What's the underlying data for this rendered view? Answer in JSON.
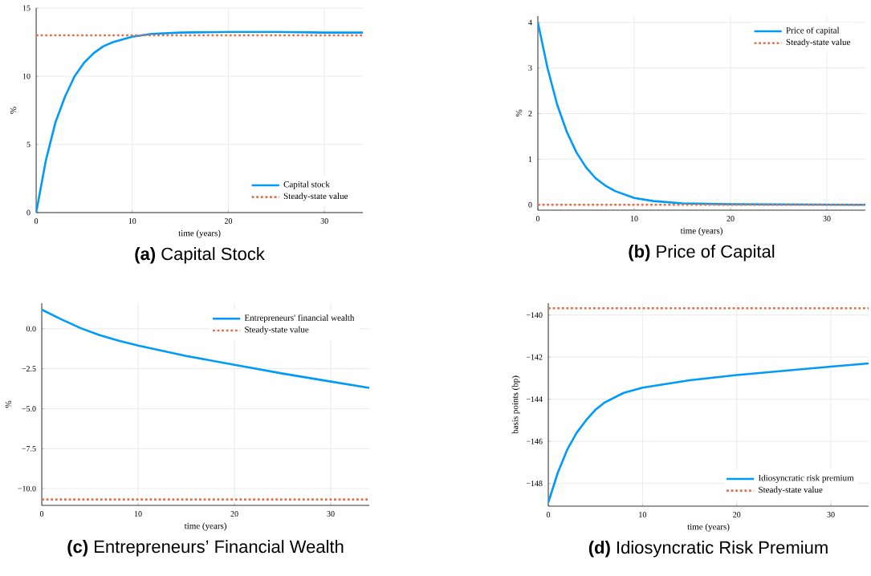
{
  "chart_data": [
    {
      "type": "line",
      "title": "**(a)** Capital Stock",
      "xlabel": "time (years)",
      "ylabel": "%",
      "xlim": [
        0,
        34
      ],
      "ylim": [
        0,
        15
      ],
      "xticks": [
        0,
        10,
        20,
        30
      ],
      "yticks": [
        0,
        5,
        10,
        15
      ],
      "grid": true,
      "legend": "bottom right",
      "series": [
        {
          "name": "Capital stock",
          "color": "#009afa",
          "x": [
            0,
            1,
            2,
            3,
            4,
            5,
            6,
            7,
            8,
            10,
            12,
            15,
            20,
            25,
            30,
            34
          ],
          "values": [
            0,
            3.8,
            6.6,
            8.5,
            10.0,
            11.0,
            11.7,
            12.2,
            12.5,
            12.9,
            13.1,
            13.2,
            13.25,
            13.25,
            13.2,
            13.2
          ]
        },
        {
          "name": "Steady-state value",
          "color": "#e26f46",
          "line_style": "dotted",
          "x": [
            0,
            34
          ],
          "values": [
            13.0,
            13.0
          ]
        }
      ]
    },
    {
      "type": "line",
      "title": "**(b)** Price of Capital",
      "xlabel": "time (years)",
      "ylabel": "%",
      "xlim": [
        0,
        34
      ],
      "ylim": [
        -0.12,
        4.14
      ],
      "xticks": [
        0,
        10,
        20,
        30
      ],
      "yticks": [
        0,
        1,
        2,
        3,
        4
      ],
      "grid": true,
      "legend": "top right",
      "series": [
        {
          "name": "Price of capital",
          "color": "#009afa",
          "x": [
            0,
            1,
            2,
            3,
            4,
            5,
            6,
            7,
            8,
            10,
            12,
            15,
            20,
            34
          ],
          "values": [
            4.0,
            3.0,
            2.2,
            1.6,
            1.15,
            0.82,
            0.58,
            0.42,
            0.3,
            0.15,
            0.08,
            0.03,
            0.01,
            0.0
          ]
        },
        {
          "name": "Steady-state value",
          "color": "#e26f46",
          "line_style": "dotted",
          "x": [
            0,
            34
          ],
          "values": [
            0,
            0
          ]
        }
      ]
    },
    {
      "type": "line",
      "title": "**(c)** Entrepreneurs’ Financial Wealth",
      "xlabel": "time (years)",
      "ylabel": "%",
      "xlim": [
        0,
        34
      ],
      "ylim": [
        -11.05,
        1.6
      ],
      "xticks": [
        0,
        10,
        20,
        30
      ],
      "yticks": [
        {
          "value": -10,
          "label": "−10.0"
        },
        {
          "value": -7.5,
          "label": "−7.5"
        },
        {
          "value": -5,
          "label": "−5.0"
        },
        {
          "value": -2.5,
          "label": "−2.5"
        },
        {
          "value": 0,
          "label": "0.0"
        }
      ],
      "grid": true,
      "legend": "top right",
      "series": [
        {
          "name": "Entrepreneurs' financial wealth",
          "color": "#009afa",
          "x": [
            0,
            2,
            4,
            6,
            8,
            10,
            15,
            20,
            25,
            30,
            34
          ],
          "values": [
            1.2,
            0.6,
            0.05,
            -0.4,
            -0.75,
            -1.05,
            -1.7,
            -2.25,
            -2.8,
            -3.3,
            -3.7
          ]
        },
        {
          "name": "Steady-state value",
          "color": "#e26f46",
          "line_style": "dotted",
          "x": [
            0,
            34
          ],
          "values": [
            -10.68,
            -10.68
          ]
        }
      ]
    },
    {
      "type": "line",
      "title": "**(d)** Idiosyncratic Risk Premium",
      "xlabel": "time (years)",
      "ylabel": "basis points (bp)",
      "xlim": [
        0,
        34
      ],
      "ylim": [
        -149.08,
        -139.44
      ],
      "xticks": [
        0,
        10,
        20,
        30
      ],
      "yticks": [
        {
          "value": -148,
          "label": "−148"
        },
        {
          "value": -146,
          "label": "−146"
        },
        {
          "value": -144,
          "label": "−144"
        },
        {
          "value": -142,
          "label": "−142"
        },
        {
          "value": -140,
          "label": "−140"
        }
      ],
      "grid": true,
      "legend": "bottom right",
      "series": [
        {
          "name": "Idiosyncratic risk premium",
          "color": "#009afa",
          "x": [
            0,
            1,
            2,
            3,
            4,
            5,
            6,
            8,
            10,
            15,
            20,
            25,
            30,
            34
          ],
          "values": [
            -148.9,
            -147.5,
            -146.4,
            -145.6,
            -145.0,
            -144.5,
            -144.15,
            -143.7,
            -143.45,
            -143.1,
            -142.85,
            -142.65,
            -142.45,
            -142.3
          ]
        },
        {
          "name": "Steady-state value",
          "color": "#e26f46",
          "line_style": "dotted",
          "x": [
            0,
            34
          ],
          "values": [
            -139.68,
            -139.68
          ]
        }
      ]
    }
  ]
}
